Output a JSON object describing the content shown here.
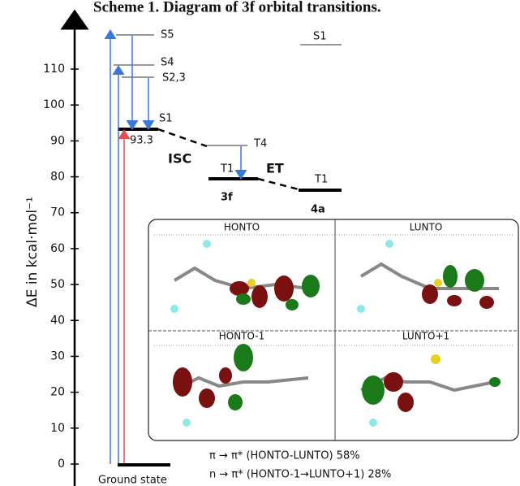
{
  "title": "Scheme 1. Diagram of 3f orbital transitions.",
  "axis": {
    "label": "ΔE in kcal·mol⁻¹",
    "ticks": [
      0,
      10,
      20,
      30,
      40,
      50,
      60,
      70,
      80,
      90,
      100,
      110
    ]
  },
  "levels": {
    "s5": "S5",
    "s4": "S4",
    "s23": "S2,3",
    "s1": "S1",
    "s1_energy": "93.3",
    "t4": "T4",
    "t1_3f": "T1",
    "t1_4a": "T1",
    "s1_4a": "S1"
  },
  "labels": {
    "isc": "ISC",
    "et": "ET",
    "compound_3f": "3f",
    "compound_4a": "4a",
    "ground": "Ground state"
  },
  "panels": [
    "HONTO",
    "LUNTO",
    "HONTO-1",
    "LUNTO+1"
  ],
  "footer": [
    "π → π* (HONTO-LUNTO) 58%",
    "n → π* (HONTO-1→LUNTO+1) 28%"
  ]
}
